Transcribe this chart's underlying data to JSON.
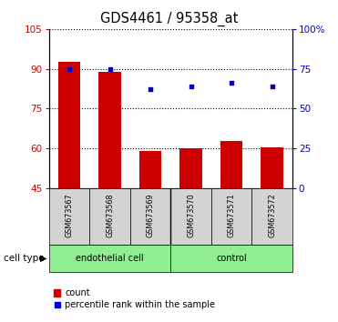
{
  "title": "GDS4461 / 95358_at",
  "samples": [
    "GSM673567",
    "GSM673568",
    "GSM673569",
    "GSM673570",
    "GSM673571",
    "GSM673572"
  ],
  "bar_values": [
    92.5,
    89.0,
    59.0,
    60.0,
    63.0,
    60.5
  ],
  "percentile_values": [
    75,
    75,
    62,
    64,
    66,
    64
  ],
  "ylim_left": [
    45,
    105
  ],
  "ylim_right": [
    0,
    100
  ],
  "yticks_left": [
    45,
    60,
    75,
    90,
    105
  ],
  "yticks_right": [
    0,
    25,
    50,
    75,
    100
  ],
  "bar_color": "#cc0000",
  "dot_color": "#0000cc",
  "group1_label": "endothelial cell",
  "group2_label": "control",
  "group_bg_color": "#90ee90",
  "sample_bg_color": "#d3d3d3",
  "legend_bar_label": "count",
  "legend_dot_label": "percentile rank within the sample",
  "cell_type_label": "cell type",
  "right_axis_color": "#0000cc",
  "left_axis_color": "#cc0000",
  "grid_color": "black",
  "grid_linestyle": "dotted",
  "grid_linewidth": 0.8
}
